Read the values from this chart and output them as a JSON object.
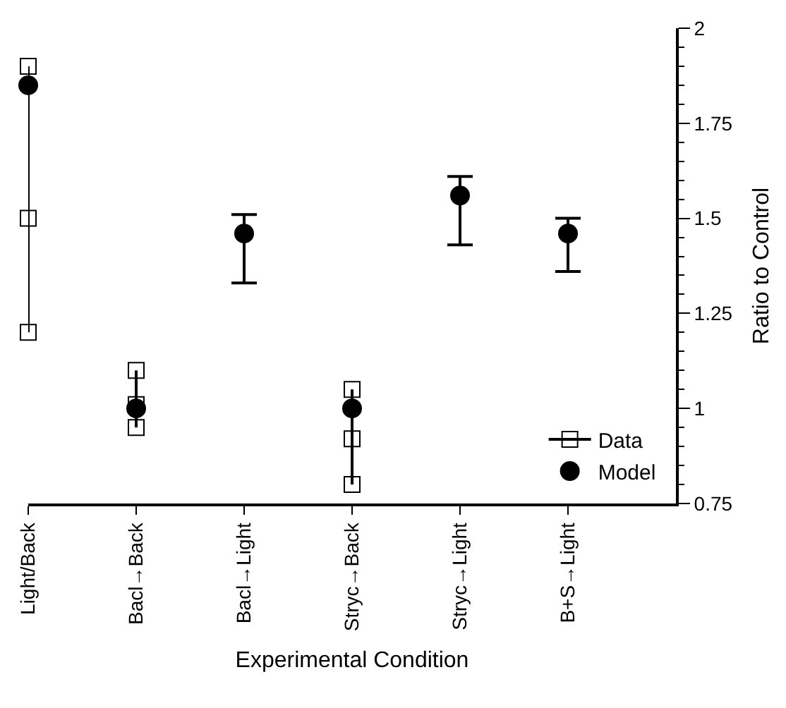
{
  "chart_data": {
    "type": "scatter",
    "categories": [
      "Light/Back",
      "Bacl→Back",
      "Bacl→Light",
      "Stryc→Back",
      "Stryc→Light",
      "B+S→Light"
    ],
    "xlabel": "Experimental Condition",
    "ylabel": "Ratio to Control",
    "ylim": [
      0.75,
      2
    ],
    "yticks": [
      0.75,
      1,
      1.25,
      1.5,
      1.75,
      2
    ],
    "legend": "bottom right",
    "series": [
      {
        "name": "Data",
        "type": "line",
        "marker": "square",
        "line_style": "solid",
        "color": "#000000",
        "x": [
          "Light/Back",
          "Light/Back",
          "Light/Back",
          "Bacl→Back",
          "Bacl→Back",
          "Bacl→Back",
          "Stryc→Back",
          "Stryc→Back",
          "Stryc→Back"
        ],
        "values": [
          1.9,
          1.5,
          1.2,
          1.1,
          1.01,
          0.95,
          1.05,
          0.92,
          0.8
        ]
      },
      {
        "name": "Model",
        "marker": "circle",
        "color": "#000000",
        "values": [
          1.85,
          1.0,
          1.46,
          1.0,
          1.56,
          1.46
        ],
        "errors": [
          null,
          null,
          [
            1.33,
            1.51
          ],
          null,
          [
            1.43,
            1.61
          ],
          [
            1.36,
            1.5
          ]
        ]
      }
    ]
  }
}
